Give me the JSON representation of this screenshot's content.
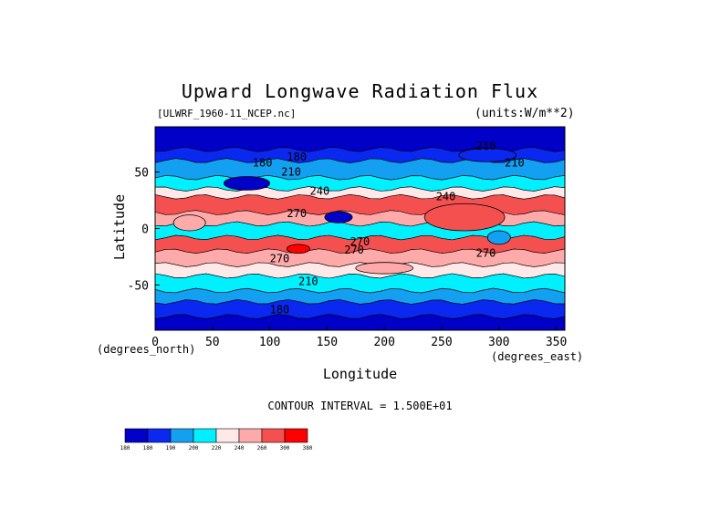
{
  "chart_data": {
    "type": "heatmap",
    "title": "Upward Longwave Radiation Flux",
    "subtitle_left": "[ULWRF_1960-11_NCEP.nc]",
    "subtitle_right": "(units:W/m**2)",
    "xlabel": "Longitude",
    "ylabel": "Latitude",
    "x_units_note": "(degrees_east)",
    "y_units_note": "(degrees_north)",
    "xlim": [
      0,
      357.5
    ],
    "ylim": [
      -90,
      90
    ],
    "x_ticks": [
      0,
      50,
      100,
      150,
      200,
      250,
      300,
      350
    ],
    "y_ticks": [
      50,
      0,
      -50
    ],
    "contour_interval": "CONTOUR INTERVAL = 1.500E+01",
    "contour_labels": [
      "180",
      "180",
      "210",
      "210",
      "210",
      "240",
      "240",
      "270",
      "270",
      "270",
      "270",
      "270",
      "210",
      "180"
    ],
    "colorbar": {
      "levels": [
        "180",
        "180",
        "190",
        "200",
        "220",
        "240",
        "260",
        "300",
        "380"
      ],
      "colors": [
        "#0000c8",
        "#0a28f0",
        "#14a0f0",
        "#00f0ff",
        "#ffe8e8",
        "#ffaaaa",
        "#f55050",
        "#ff0000"
      ]
    },
    "bands": [
      {
        "lat": [
          90,
          70
        ],
        "level": 0
      },
      {
        "lat": [
          70,
          60
        ],
        "level": 1
      },
      {
        "lat": [
          60,
          45
        ],
        "level": 2
      },
      {
        "lat": [
          45,
          35
        ],
        "level": 3
      },
      {
        "lat": [
          35,
          28
        ],
        "level": 4
      },
      {
        "lat": [
          28,
          14
        ],
        "level": 6
      },
      {
        "lat": [
          14,
          4
        ],
        "level": 5
      },
      {
        "lat": [
          4,
          -8
        ],
        "level": 3
      },
      {
        "lat": [
          -8,
          -20
        ],
        "level": 6
      },
      {
        "lat": [
          -20,
          -32
        ],
        "level": 5
      },
      {
        "lat": [
          -32,
          -42
        ],
        "level": 4
      },
      {
        "lat": [
          -42,
          -55
        ],
        "level": 3
      },
      {
        "lat": [
          -55,
          -65
        ],
        "level": 2
      },
      {
        "lat": [
          -65,
          -78
        ],
        "level": 1
      },
      {
        "lat": [
          -78,
          -90
        ],
        "level": 0
      }
    ],
    "blobs": [
      {
        "lon": 125,
        "lat": -18,
        "rx": 10,
        "ry": 4,
        "level": 7
      },
      {
        "lon": 160,
        "lat": 10,
        "rx": 12,
        "ry": 5,
        "level": 0
      },
      {
        "lon": 30,
        "lat": 5,
        "rx": 14,
        "ry": 7,
        "level": 5
      },
      {
        "lon": 270,
        "lat": 10,
        "rx": 35,
        "ry": 12,
        "level": 6
      },
      {
        "lon": 300,
        "lat": -8,
        "rx": 10,
        "ry": 6,
        "level": 2
      },
      {
        "lon": 80,
        "lat": 40,
        "rx": 20,
        "ry": 6,
        "level": 0
      },
      {
        "lon": 290,
        "lat": 65,
        "rx": 25,
        "ry": 6,
        "level": 1
      },
      {
        "lon": 200,
        "lat": -35,
        "rx": 25,
        "ry": 5,
        "level": 5
      }
    ]
  }
}
